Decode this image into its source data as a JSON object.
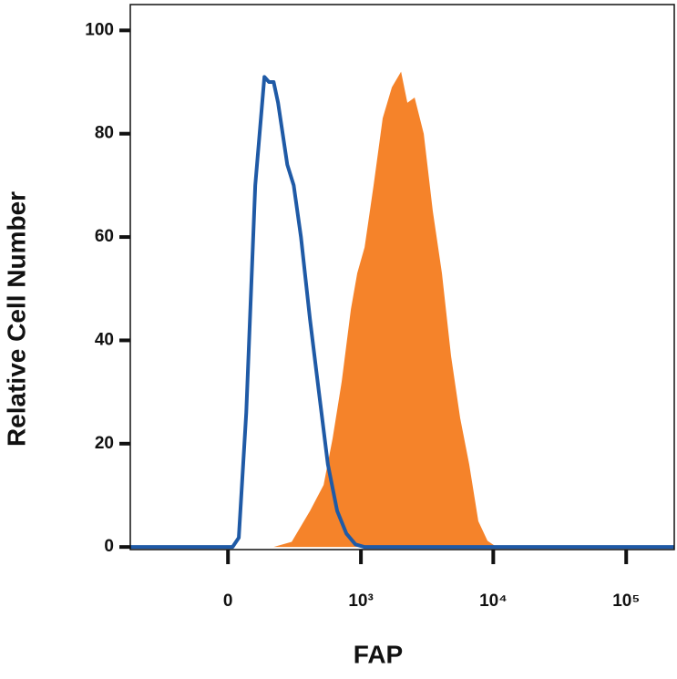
{
  "chart_data": {
    "type": "histogram-overlay",
    "x_label": "FAP",
    "y_label": "Relative Cell Number",
    "xscale": "biexponential",
    "xlim": [
      -530,
      230000
    ],
    "ylim": [
      -0.5,
      105
    ],
    "xticks": [
      0,
      {
        "value": 1000,
        "label": "10³"
      },
      {
        "value": 10000,
        "label": "10⁴"
      },
      {
        "value": 100000,
        "label": "10⁵"
      }
    ],
    "yticks": [
      0,
      20,
      40,
      60,
      80,
      100
    ],
    "series": [
      {
        "color": "#f5832a",
        "fill": true,
        "x": [
          -530,
          177,
          271,
          394,
          510,
          602,
          710,
          837,
          937,
          1067,
          1250,
          1466,
          1721,
          2020,
          2254,
          2557,
          2996,
          3507,
          4107,
          4810,
          5632,
          6591,
          7722,
          9050,
          10590,
          230000
        ],
        "values": [
          0,
          0,
          1,
          7,
          12,
          21,
          32,
          46,
          53,
          58,
          70,
          83,
          89,
          92,
          86,
          87,
          80,
          65,
          53,
          37,
          25,
          16,
          5,
          1.2,
          0,
          0
        ]
      },
      {
        "color": "#1f5aa6",
        "fill": false,
        "x": [
          -530,
          0,
          16,
          38,
          65,
          99,
          136,
          156,
          177,
          198,
          246,
          283,
          329,
          394,
          467,
          552,
          654,
          772,
          908,
          1067,
          230000
        ],
        "values": [
          0,
          0,
          0,
          1.8,
          26,
          70,
          91,
          90,
          90,
          86,
          74,
          70,
          60,
          44,
          30,
          16,
          7,
          2.6,
          0.5,
          0,
          0
        ]
      }
    ]
  }
}
